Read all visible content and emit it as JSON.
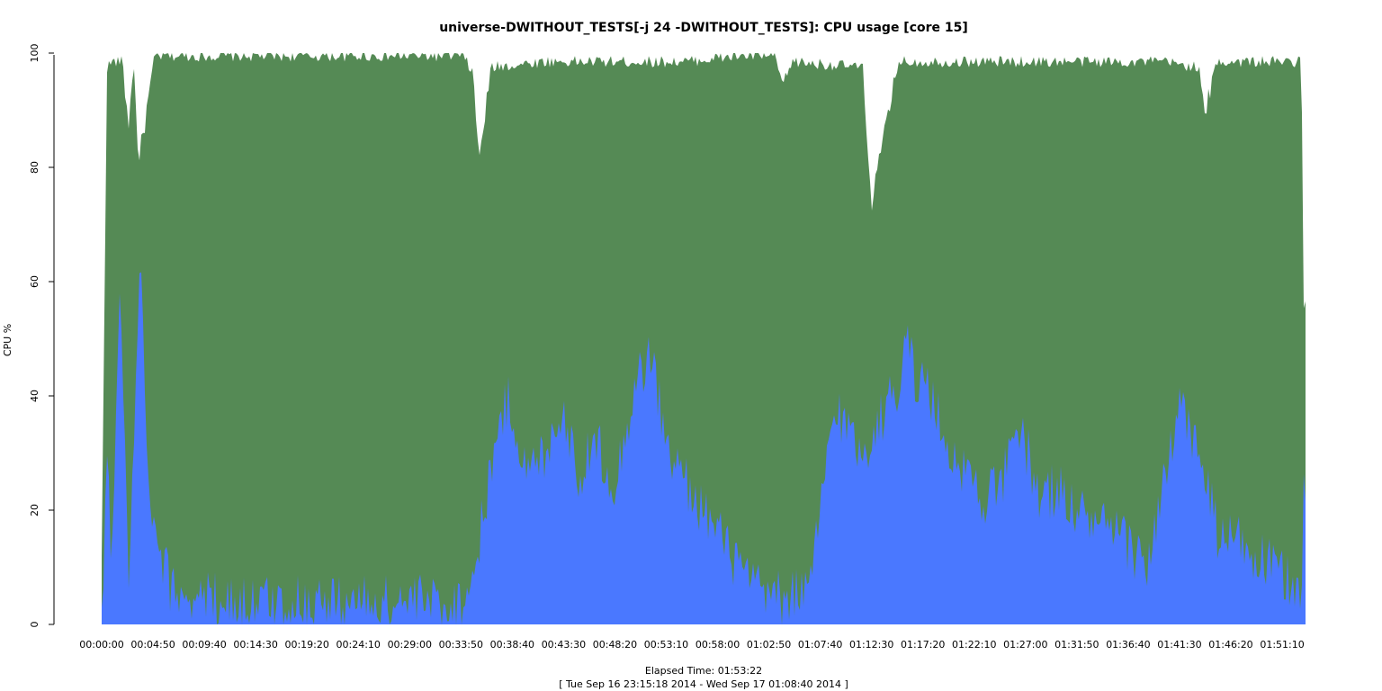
{
  "chart_data": {
    "type": "area",
    "title": "universe-DWITHOUT_TESTS[-j 24  -DWITHOUT_TESTS]: CPU usage [core 15]",
    "ylabel": "CPU %",
    "xlabel": "Elapsed Time: 01:53:22",
    "subtitle": "[ Tue Sep 16 23:15:18 2014 - Wed Sep 17 01:08:40 2014 ]",
    "ylim": [
      0,
      100
    ],
    "yticks": [
      0,
      20,
      40,
      60,
      80,
      100
    ],
    "xlim_seconds": [
      0,
      6802
    ],
    "xticks": [
      "00:00:00",
      "00:04:50",
      "00:09:40",
      "00:14:30",
      "00:19:20",
      "00:24:10",
      "00:29:00",
      "00:33:50",
      "00:38:40",
      "00:43:30",
      "00:48:20",
      "00:53:10",
      "00:58:00",
      "01:02:50",
      "01:07:40",
      "01:12:30",
      "01:17:20",
      "01:22:10",
      "01:27:00",
      "01:31:50",
      "01:36:40",
      "01:41:30",
      "01:46:20",
      "01:51:10"
    ],
    "colors": {
      "total": "#558a55",
      "user": "#4a78ff"
    },
    "series": [
      {
        "key": "total",
        "x": [
          0,
          30,
          60,
          120,
          150,
          180,
          210,
          300,
          600,
          1200,
          1800,
          2040,
          2100,
          2130,
          2200,
          2500,
          2900,
          3300,
          3600,
          3800,
          3850,
          3900,
          4300,
          4350,
          4500,
          5000,
          5500,
          6000,
          6200,
          6230,
          6300,
          6600,
          6780,
          6790,
          6802
        ],
        "values": [
          12,
          98,
          99,
          99,
          88,
          99,
          82,
          100,
          100,
          100,
          100,
          100,
          97,
          82,
          98,
          99,
          99,
          99,
          100,
          100,
          95,
          99,
          98,
          75,
          99,
          99,
          99,
          99,
          98,
          90,
          99,
          99,
          99,
          56,
          56
        ]
      },
      {
        "key": "user",
        "x": [
          0,
          30,
          60,
          100,
          150,
          180,
          220,
          250,
          300,
          400,
          700,
          1200,
          1800,
          2040,
          2100,
          2150,
          2200,
          2300,
          2400,
          2500,
          2600,
          2700,
          2800,
          2900,
          3000,
          3100,
          3200,
          3400,
          3600,
          3700,
          3800,
          3850,
          3900,
          4000,
          4100,
          4150,
          4200,
          4300,
          4400,
          4500,
          4550,
          4600,
          4650,
          4700,
          4800,
          4900,
          5000,
          5100,
          5200,
          5300,
          5400,
          5500,
          5600,
          5700,
          5800,
          5900,
          6000,
          6100,
          6200,
          6250,
          6300,
          6350,
          6400,
          6500,
          6600,
          6700,
          6780,
          6790,
          6802
        ],
        "values": [
          0,
          30,
          10,
          62,
          8,
          28,
          66,
          30,
          14,
          6,
          4,
          4,
          4,
          4,
          8,
          18,
          28,
          40,
          26,
          30,
          38,
          26,
          32,
          24,
          40,
          48,
          30,
          20,
          10,
          6,
          5,
          4,
          6,
          5,
          30,
          38,
          35,
          30,
          36,
          42,
          54,
          40,
          44,
          38,
          30,
          26,
          22,
          26,
          34,
          22,
          24,
          20,
          18,
          16,
          14,
          10,
          24,
          38,
          30,
          24,
          16,
          14,
          16,
          12,
          10,
          8,
          7,
          22,
          22
        ]
      }
    ]
  }
}
